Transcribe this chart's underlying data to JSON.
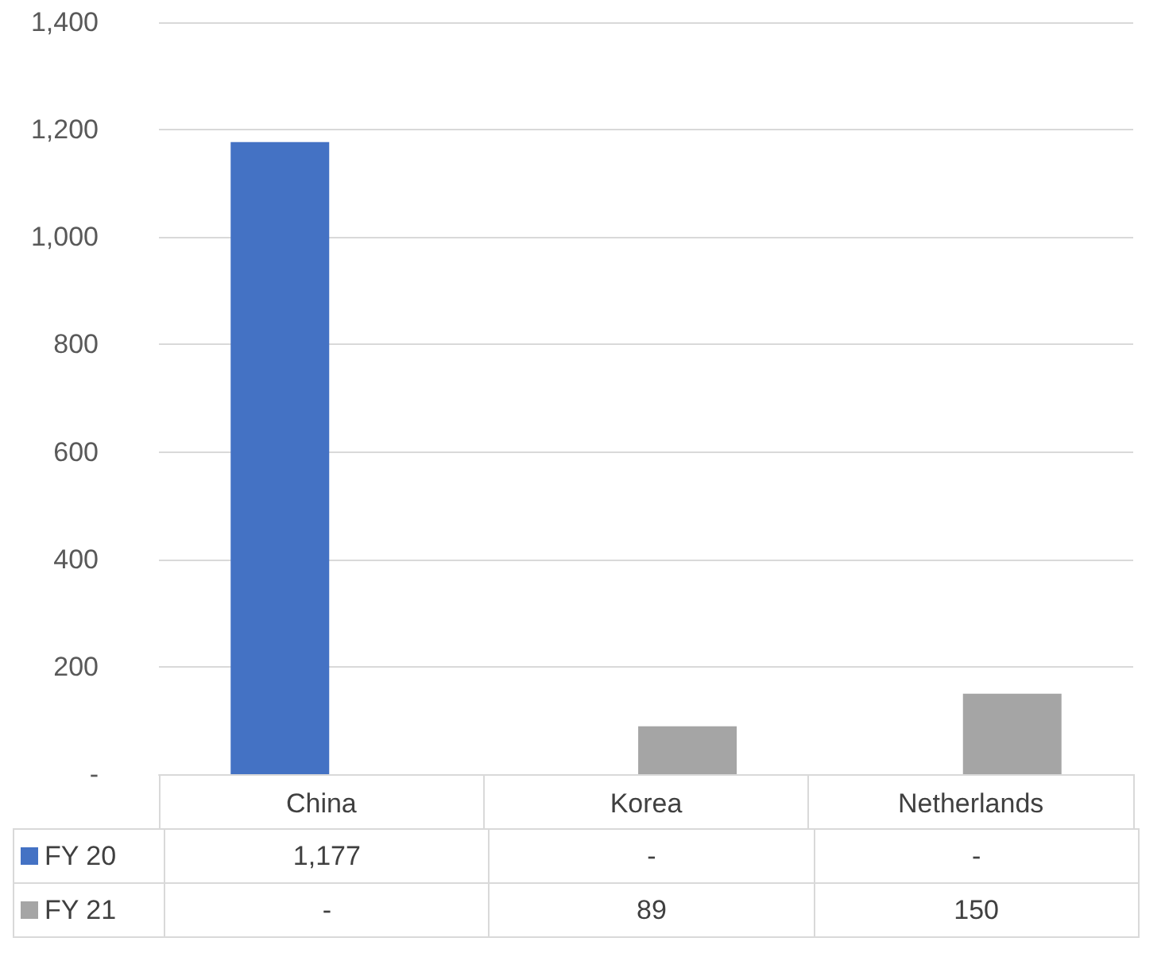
{
  "chart_data": {
    "type": "bar",
    "categories": [
      "China",
      "Korea",
      "Netherlands"
    ],
    "series": [
      {
        "name": "FY 20",
        "color": "#4472c4",
        "values": [
          1177,
          null,
          null
        ],
        "value_labels": [
          "1,177",
          "-",
          "-"
        ]
      },
      {
        "name": "FY 21",
        "color": "#a5a5a5",
        "values": [
          null,
          89,
          150
        ],
        "value_labels": [
          "-",
          "89",
          "150"
        ]
      }
    ],
    "ylim": [
      0,
      1400
    ],
    "yticks": [
      {
        "value": 0,
        "label": "-"
      },
      {
        "value": 200,
        "label": "200"
      },
      {
        "value": 400,
        "label": "400"
      },
      {
        "value": 600,
        "label": "600"
      },
      {
        "value": 800,
        "label": "800"
      },
      {
        "value": 1000,
        "label": "1,000"
      },
      {
        "value": 1200,
        "label": "1,200"
      },
      {
        "value": 1400,
        "label": "1,400"
      }
    ],
    "grid": "y",
    "legend": "bottom"
  }
}
